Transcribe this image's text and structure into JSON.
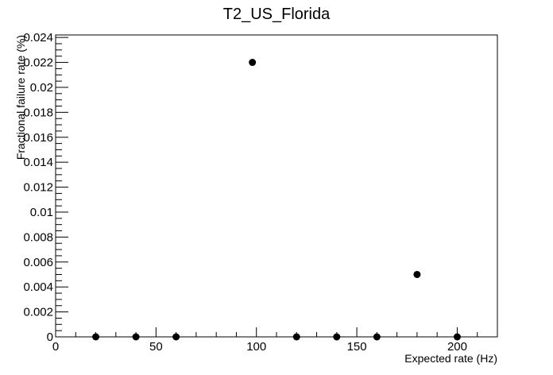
{
  "chart_data": {
    "type": "scatter",
    "title": "T2_US_Florida",
    "xlabel": "Expected rate (Hz)",
    "ylabel": "Fractional failure rate (%)",
    "xlim": [
      0,
      220
    ],
    "ylim": [
      0,
      0.0242
    ],
    "x_ticks": [
      0,
      50,
      100,
      150,
      200
    ],
    "x_tick_labels": [
      "0",
      "50",
      "100",
      "150",
      "200"
    ],
    "y_ticks": [
      0,
      0.002,
      0.004,
      0.006,
      0.008,
      0.01,
      0.012,
      0.014,
      0.016,
      0.018,
      0.02,
      0.022,
      0.024
    ],
    "y_tick_labels": [
      "0",
      "0.002",
      "0.004",
      "0.006",
      "0.008",
      "0.01",
      "0.012",
      "0.014",
      "0.016",
      "0.018",
      "0.02",
      "0.022",
      "0.024"
    ],
    "grid": false,
    "legend": "none",
    "marker_color": "#000000",
    "points": [
      {
        "x": 20,
        "y": 0
      },
      {
        "x": 40,
        "y": 0
      },
      {
        "x": 60,
        "y": 0
      },
      {
        "x": 98,
        "y": 0.022
      },
      {
        "x": 120,
        "y": 0
      },
      {
        "x": 140,
        "y": 0
      },
      {
        "x": 160,
        "y": 0
      },
      {
        "x": 180,
        "y": 0.005
      },
      {
        "x": 200,
        "y": 0
      }
    ]
  }
}
